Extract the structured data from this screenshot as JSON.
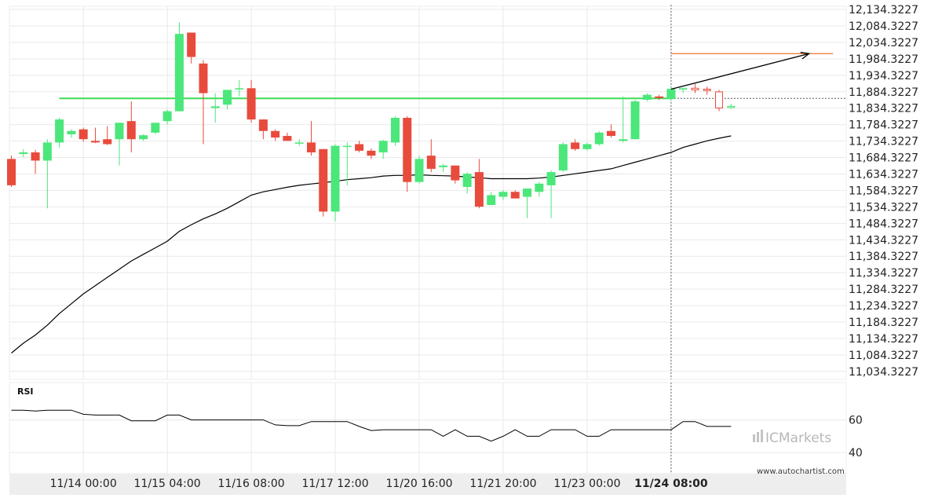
{
  "chart_data": {
    "type": "candlestick",
    "y_axis": {
      "ticks": [
        "12,134.3227",
        "12,084.3227",
        "12,034.3227",
        "11,984.3227",
        "11,934.3227",
        "11,884.3227",
        "11,834.3227",
        "11,784.3227",
        "11,734.3227",
        "11,684.3227",
        "11,634.3227",
        "11,584.3227",
        "11,534.3227",
        "11,484.3227",
        "11,434.3227",
        "11,384.3227",
        "11,334.3227",
        "11,284.3227",
        "11,234.3227",
        "11,184.3227",
        "11,134.3227",
        "11,084.3227",
        "11,034.3227"
      ],
      "ylim": [
        11010,
        12144
      ]
    },
    "x_axis": {
      "ticks": [
        {
          "label": "11/14 00:00",
          "index": 6
        },
        {
          "label": "11/15 04:00",
          "index": 13
        },
        {
          "label": "11/16 08:00",
          "index": 20
        },
        {
          "label": "11/17 12:00",
          "index": 27
        },
        {
          "label": "11/20 16:00",
          "index": 34
        },
        {
          "label": "11/21 20:00",
          "index": 41
        },
        {
          "label": "11/23 00:00",
          "index": 48
        },
        {
          "label": "11/24 08:00",
          "index": 55,
          "bold": true
        }
      ]
    },
    "candles": [
      [
        11680,
        11690,
        11595,
        11600
      ],
      [
        11695,
        11710,
        11685,
        11700
      ],
      [
        11700,
        11708,
        11635,
        11675
      ],
      [
        11675,
        11740,
        11530,
        11730
      ],
      [
        11730,
        11805,
        11715,
        11800
      ],
      [
        11755,
        11770,
        11745,
        11765
      ],
      [
        11770,
        11775,
        11732,
        11740
      ],
      [
        11735,
        11775,
        11728,
        11730
      ],
      [
        11740,
        11780,
        11722,
        11725
      ],
      [
        11740,
        11790,
        11660,
        11790
      ],
      [
        11795,
        11855,
        11700,
        11740
      ],
      [
        11740,
        11755,
        11735,
        11752
      ],
      [
        11760,
        11785,
        11755,
        11790
      ],
      [
        11795,
        11830,
        11785,
        11825
      ],
      [
        11825,
        12095,
        11825,
        12060
      ],
      [
        12064,
        12064,
        11970,
        11990
      ],
      [
        11970,
        11980,
        11725,
        11880
      ],
      [
        11835,
        11880,
        11790,
        11840
      ],
      [
        11845,
        11890,
        11830,
        11890
      ],
      [
        11895,
        11920,
        11870,
        11895
      ],
      [
        11895,
        11920,
        11790,
        11800
      ],
      [
        11800,
        11800,
        11740,
        11765
      ],
      [
        11765,
        11770,
        11735,
        11745
      ],
      [
        11750,
        11760,
        11735,
        11735
      ],
      [
        11730,
        11740,
        11720,
        11730
      ],
      [
        11730,
        11795,
        11690,
        11700
      ],
      [
        11710,
        11710,
        11505,
        11520
      ],
      [
        11520,
        11725,
        11490,
        11720
      ],
      [
        11720,
        11730,
        11600,
        11720
      ],
      [
        11725,
        11735,
        11700,
        11705
      ],
      [
        11705,
        11712,
        11680,
        11690
      ],
      [
        11700,
        11738,
        11680,
        11735
      ],
      [
        11730,
        11810,
        11720,
        11805
      ],
      [
        11805,
        11810,
        11580,
        11610
      ],
      [
        11610,
        11690,
        11605,
        11680
      ],
      [
        11690,
        11740,
        11640,
        11650
      ],
      [
        11655,
        11665,
        11640,
        11660
      ],
      [
        11660,
        11660,
        11605,
        11615
      ],
      [
        11595,
        11640,
        11575,
        11635
      ],
      [
        11640,
        11680,
        11530,
        11535
      ],
      [
        11540,
        11580,
        11540,
        11570
      ],
      [
        11565,
        11585,
        11555,
        11580
      ],
      [
        11580,
        11585,
        11560,
        11560
      ],
      [
        11565,
        11590,
        11500,
        11590
      ],
      [
        11580,
        11610,
        11565,
        11605
      ],
      [
        11600,
        11645,
        11500,
        11640
      ],
      [
        11645,
        11730,
        11640,
        11725
      ],
      [
        11730,
        11740,
        11705,
        11710
      ],
      [
        11710,
        11730,
        11705,
        11725
      ],
      [
        11725,
        11765,
        11720,
        11760
      ],
      [
        11765,
        11785,
        11745,
        11750
      ],
      [
        11735,
        11870,
        11730,
        11740
      ],
      [
        11740,
        11860,
        11740,
        11855
      ],
      [
        11860,
        11880,
        11855,
        11875
      ],
      [
        11870,
        11875,
        11860,
        11865
      ],
      [
        11862,
        11900,
        11857,
        11893
      ],
      [
        11895,
        11895,
        11880,
        11895
      ],
      [
        11895,
        11908,
        11880,
        11890
      ],
      [
        11892,
        11900,
        11875,
        11888
      ],
      [
        11884,
        11890,
        11825,
        11835
      ],
      [
        11840,
        11848,
        11832,
        11840
      ]
    ],
    "moving_average": [
      11090,
      11120,
      11145,
      11175,
      11210,
      11240,
      11270,
      11295,
      11320,
      11345,
      11370,
      11390,
      11410,
      11430,
      11460,
      11480,
      11498,
      11513,
      11530,
      11550,
      11570,
      11580,
      11587,
      11594,
      11600,
      11604,
      11608,
      11612,
      11617,
      11620,
      11623,
      11628,
      11630,
      11630,
      11632,
      11630,
      11629,
      11628,
      11625,
      11623,
      11620,
      11620,
      11620,
      11620,
      11622,
      11625,
      11630,
      11635,
      11640,
      11645,
      11650,
      11660,
      11670,
      11680,
      11690,
      11700,
      11715,
      11725,
      11735,
      11743,
      11750
    ],
    "support_level": 11864,
    "current_price": 11864,
    "forecast_level": 12000,
    "forecast_start_index": 55,
    "forecast_start_price": 11892,
    "forecast_end_index": 66.5,
    "forecast_end_price": 12000,
    "forecast_line_start_index": 55,
    "forecast_line_end_index": 68.5,
    "vertical_marker_index": 55,
    "rsi": {
      "label": "RSI",
      "ticks": [
        "60",
        "40"
      ],
      "ylim": [
        27,
        83
      ],
      "values": [
        66,
        66,
        65.5,
        66,
        66,
        66,
        63.5,
        63,
        63,
        63,
        59.5,
        59.5,
        59.5,
        63,
        63,
        60,
        60,
        60,
        60,
        60,
        60,
        60,
        57,
        56.5,
        56.5,
        59,
        59,
        59,
        59,
        56,
        53.5,
        54,
        54,
        54,
        54,
        54,
        50,
        54,
        50,
        50,
        47,
        50,
        54,
        50,
        50,
        54,
        54,
        54,
        50,
        50,
        54,
        54,
        54,
        54,
        54,
        54,
        59,
        59,
        56,
        56,
        56
      ]
    },
    "colors": {
      "bull": "#4be77a",
      "bear": "#e84b3c",
      "support": "#3ddc56",
      "forecast_level": "#f08040",
      "line": "#000000",
      "grid": "#e9e9e9"
    }
  },
  "branding": {
    "broker": "ICMarkets",
    "watermark": "www.autochartist.com"
  }
}
